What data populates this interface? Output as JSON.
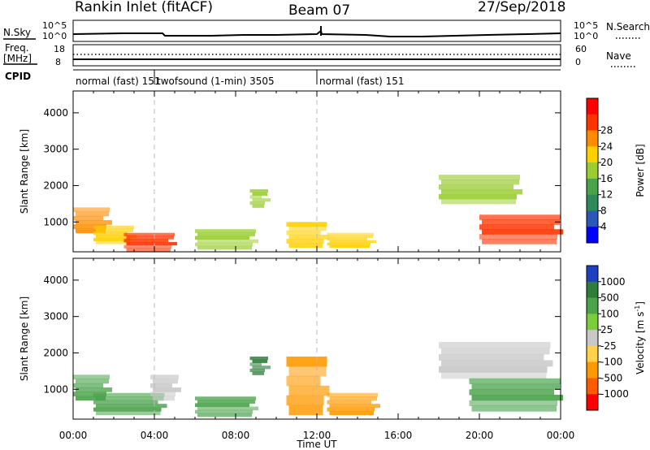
{
  "header": {
    "station": "Rankin Inlet (fitACF)",
    "beam": "Beam 07",
    "date": "27/Sep/2018"
  },
  "top_panel": {
    "left_label": "N.Sky",
    "right_label": "N.Search",
    "left_ticks": [
      "10^5",
      "10^0"
    ],
    "right_ticks": [
      "10^5",
      "10^0"
    ]
  },
  "freq_panel": {
    "left_label_1": "Freq.",
    "left_label_2": "[MHz]",
    "right_label": "Nave",
    "left_ticks": [
      "18",
      "8"
    ],
    "right_ticks": [
      "60",
      "0"
    ]
  },
  "cpid": {
    "label": "CPID",
    "segments": [
      {
        "text": "normal (fast) 151",
        "start_hour": 0.0
      },
      {
        "text": "twofsound (1-min) 3505",
        "start_hour": 4.0
      },
      {
        "text": "normal (fast) 151",
        "start_hour": 12.0
      }
    ]
  },
  "chart_data": [
    {
      "type": "heatmap",
      "title": "",
      "xlabel": "",
      "ylabel": "Slant Range [km]",
      "xlim": [
        0,
        24
      ],
      "ylim": [
        180,
        4600
      ],
      "yticks": [
        "1000",
        "2000",
        "3000",
        "4000"
      ],
      "colorbar": {
        "label": "Power [dB]",
        "ticks": [
          "4",
          "8",
          "12",
          "16",
          "20",
          "24",
          "28"
        ],
        "colors": [
          "#0000ff",
          "#2b57b8",
          "#2e8b57",
          "#4aa24a",
          "#9acd32",
          "#ffd000",
          "#ff8c00",
          "#ff3300",
          "#ff0000"
        ]
      },
      "regions": [
        {
          "t0": 0.0,
          "t1": 1.8,
          "r0": 700,
          "r1": 1400,
          "value": 22
        },
        {
          "t0": 1.0,
          "t1": 3.0,
          "r0": 400,
          "r1": 900,
          "value": 18
        },
        {
          "t0": 2.5,
          "t1": 5.0,
          "r0": 200,
          "r1": 700,
          "value": 26
        },
        {
          "t0": 6.0,
          "t1": 9.0,
          "r0": 250,
          "r1": 800,
          "value": 14
        },
        {
          "t0": 8.7,
          "t1": 9.6,
          "r0": 1400,
          "r1": 1900,
          "value": 14
        },
        {
          "t0": 10.5,
          "t1": 12.5,
          "r0": 300,
          "r1": 1000,
          "value": 20
        },
        {
          "t0": 12.5,
          "t1": 14.8,
          "r0": 300,
          "r1": 700,
          "value": 18
        },
        {
          "t0": 18.0,
          "t1": 22.0,
          "r0": 1500,
          "r1": 2300,
          "value": 16
        },
        {
          "t0": 20.0,
          "t1": 24.0,
          "r0": 400,
          "r1": 1200,
          "value": 26
        }
      ]
    },
    {
      "type": "heatmap",
      "title": "",
      "xlabel": "Time UT",
      "ylabel": "Slant Range [km]",
      "xlim": [
        0,
        24
      ],
      "ylim": [
        180,
        4600
      ],
      "xticks": [
        "00:00",
        "04:00",
        "08:00",
        "12:00",
        "16:00",
        "20:00",
        "00:00"
      ],
      "yticks": [
        "1000",
        "2000",
        "3000",
        "4000"
      ],
      "colorbar": {
        "label": "Velocity [m s^-1]",
        "label_base": "Velocity [m s",
        "label_sup": "-1",
        "label_end": "]",
        "ticks": [
          "1000",
          "500",
          "100",
          "25",
          "-25",
          "-100",
          "-500",
          "-1000"
        ],
        "colors": [
          "#1f3fbf",
          "#2e7d3a",
          "#4aa24a",
          "#7ccd3c",
          "#c8c8c8",
          "#ffd24a",
          "#ff9900",
          "#ff5a00",
          "#ff0000"
        ]
      },
      "regions": [
        {
          "t0": 0.0,
          "t1": 1.8,
          "r0": 700,
          "r1": 1400,
          "value": 100
        },
        {
          "t0": 1.0,
          "t1": 4.5,
          "r0": 300,
          "r1": 900,
          "value": 100
        },
        {
          "t0": 3.8,
          "t1": 5.2,
          "r0": 700,
          "r1": 1400,
          "value": 0
        },
        {
          "t0": 6.0,
          "t1": 9.0,
          "r0": 250,
          "r1": 800,
          "value": 100
        },
        {
          "t0": 8.7,
          "t1": 9.6,
          "r0": 1400,
          "r1": 1900,
          "value": 500
        },
        {
          "t0": 10.5,
          "t1": 12.5,
          "r0": 300,
          "r1": 1900,
          "value": -300
        },
        {
          "t0": 12.5,
          "t1": 15.0,
          "r0": 300,
          "r1": 900,
          "value": -300
        },
        {
          "t0": 18.0,
          "t1": 23.5,
          "r0": 1300,
          "r1": 2300,
          "value": 0
        },
        {
          "t0": 19.5,
          "t1": 24.0,
          "r0": 400,
          "r1": 1300,
          "value": 300
        }
      ]
    }
  ]
}
